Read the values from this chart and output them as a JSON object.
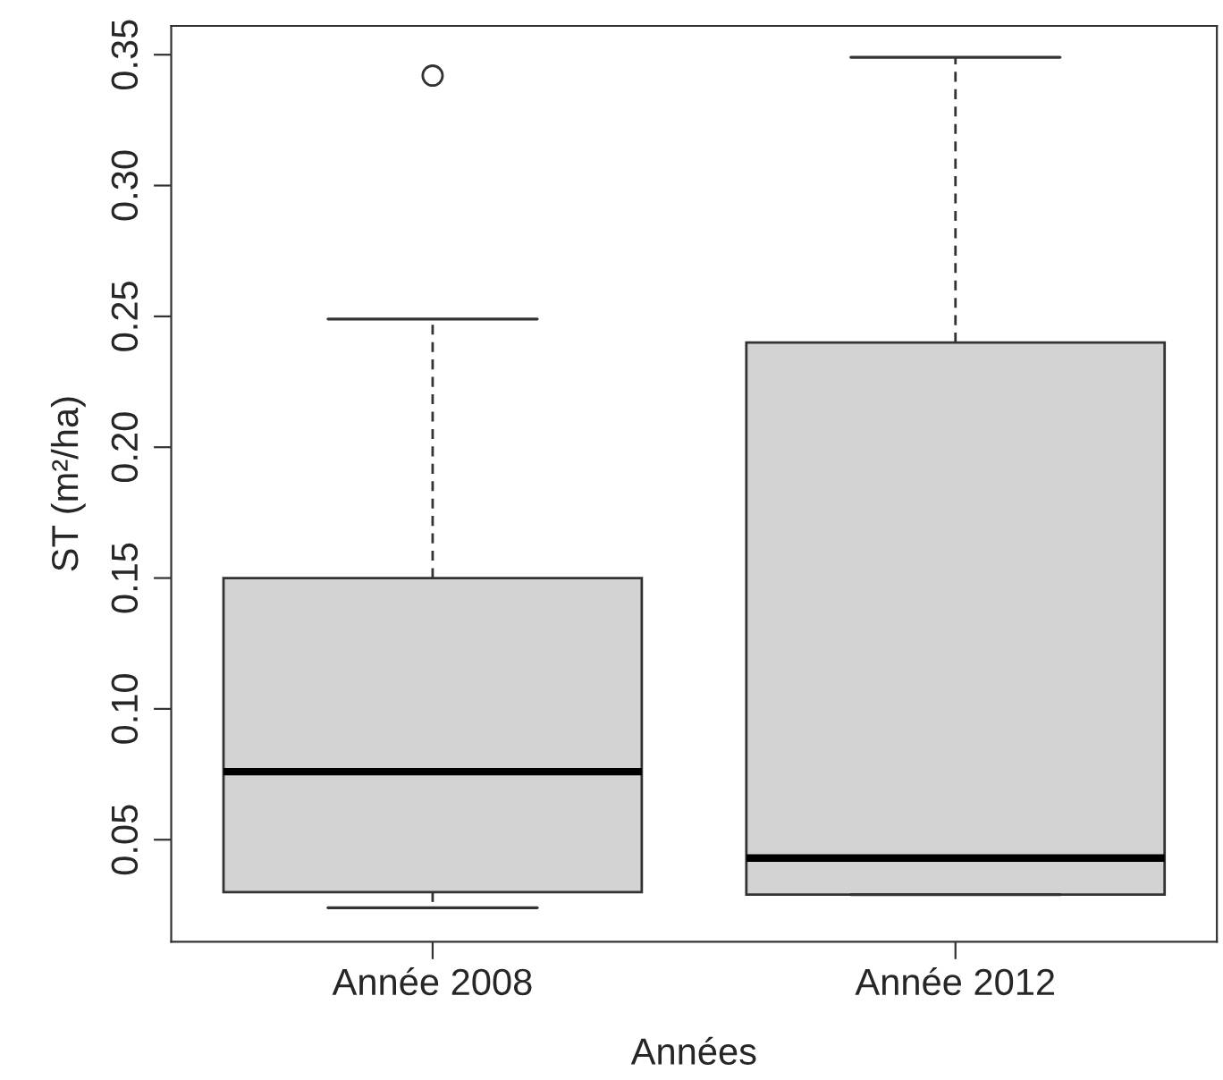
{
  "chart_data": {
    "type": "box",
    "xlabel": "Années",
    "ylabel": "ST (m²/ha)",
    "categories": [
      "Année 2008",
      "Année 2012"
    ],
    "boxes": [
      {
        "low": 0.024,
        "q1": 0.03,
        "median": 0.076,
        "q3": 0.15,
        "high": 0.249,
        "outliers": [
          0.342
        ]
      },
      {
        "low": 0.029,
        "q1": 0.029,
        "median": 0.043,
        "q3": 0.24,
        "high": 0.349
      }
    ],
    "color": "#d3d3d3",
    "ylim": [
      0.011,
      0.361
    ],
    "yticks": [
      {
        "value": 0.05,
        "label": "0.05"
      },
      {
        "value": 0.1,
        "label": "0.10"
      },
      {
        "value": 0.15,
        "label": "0.15"
      },
      {
        "value": 0.2,
        "label": "0.20"
      },
      {
        "value": 0.25,
        "label": "0.25"
      },
      {
        "value": 0.3,
        "label": "0.30"
      },
      {
        "value": 0.35,
        "label": "0.35"
      }
    ],
    "grid": false
  }
}
